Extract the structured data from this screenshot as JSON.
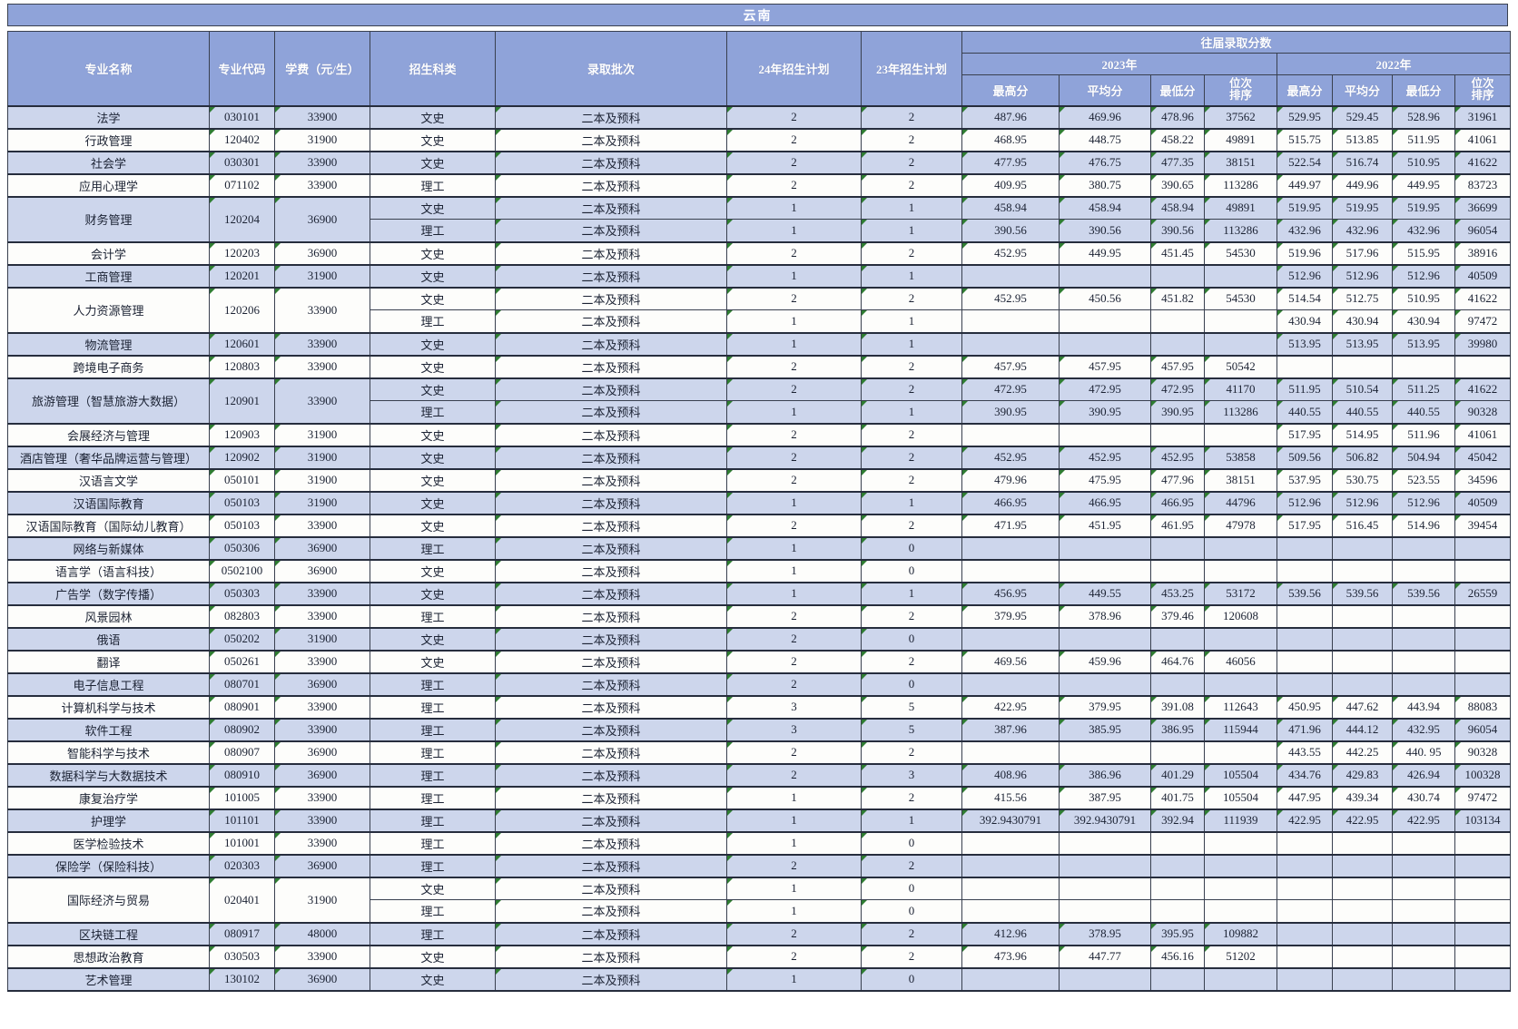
{
  "region_banner": "云南",
  "columns": {
    "major": "专业名称",
    "code": "专业代码",
    "tuition": "学费（元/生）",
    "category": "招生科类",
    "batch": "录取批次",
    "plan24": "24年招生计划",
    "plan23": "23年招生计划",
    "past_scores": "往届录取分数",
    "year2023": "2023年",
    "year2022": "2022年",
    "max": "最高分",
    "avg": "平均分",
    "min": "最低分",
    "rank": "位次\n排序"
  },
  "colors": {
    "header_bg": "#8fa3d9",
    "row_alt_bg": "#cdd6ec",
    "row_white_bg": "#fdfdfb",
    "border": "#39404f",
    "header_text": "#ffffff",
    "body_text": "#1b2233",
    "error_triangle": "#2f7d32"
  },
  "majors": [
    {
      "name": "法学",
      "code": "030101",
      "tuition": "33900",
      "rows": [
        {
          "category": "文史",
          "batch": "二本及预科",
          "plan24": "2",
          "plan23": "2",
          "y2023": [
            "487.96",
            "469.96",
            "478.96",
            "37562"
          ],
          "y2022": [
            "529.95",
            "529.45",
            "528.96",
            "31961"
          ]
        }
      ]
    },
    {
      "name": "行政管理",
      "code": "120402",
      "tuition": "31900",
      "rows": [
        {
          "category": "文史",
          "batch": "二本及预科",
          "plan24": "2",
          "plan23": "2",
          "y2023": [
            "468.95",
            "448.75",
            "458.22",
            "49891"
          ],
          "y2022": [
            "515.75",
            "513.85",
            "511.95",
            "41061"
          ]
        }
      ]
    },
    {
      "name": "社会学",
      "code": "030301",
      "tuition": "33900",
      "rows": [
        {
          "category": "文史",
          "batch": "二本及预科",
          "plan24": "2",
          "plan23": "2",
          "y2023": [
            "477.95",
            "476.75",
            "477.35",
            "38151"
          ],
          "y2022": [
            "522.54",
            "516.74",
            "510.95",
            "41622"
          ]
        }
      ]
    },
    {
      "name": "应用心理学",
      "code": "071102",
      "tuition": "33900",
      "rows": [
        {
          "category": "理工",
          "batch": "二本及预科",
          "plan24": "2",
          "plan23": "2",
          "y2023": [
            "409.95",
            "380.75",
            "390.65",
            "113286"
          ],
          "y2022": [
            "449.97",
            "449.96",
            "449.95",
            "83723"
          ]
        }
      ]
    },
    {
      "name": "财务管理",
      "code": "120204",
      "tuition": "36900",
      "rows": [
        {
          "category": "文史",
          "batch": "二本及预科",
          "plan24": "1",
          "plan23": "1",
          "y2023": [
            "458.94",
            "458.94",
            "458.94",
            "49891"
          ],
          "y2022": [
            "519.95",
            "519.95",
            "519.95",
            "36699"
          ]
        },
        {
          "category": "理工",
          "batch": "二本及预科",
          "plan24": "1",
          "plan23": "1",
          "y2023": [
            "390.56",
            "390.56",
            "390.56",
            "113286"
          ],
          "y2022": [
            "432.96",
            "432.96",
            "432.96",
            "96054"
          ]
        }
      ]
    },
    {
      "name": "会计学",
      "code": "120203",
      "tuition": "36900",
      "rows": [
        {
          "category": "文史",
          "batch": "二本及预科",
          "plan24": "2",
          "plan23": "2",
          "y2023": [
            "452.95",
            "449.95",
            "451.45",
            "54530"
          ],
          "y2022": [
            "519.96",
            "517.96",
            "515.95",
            "38916"
          ]
        }
      ]
    },
    {
      "name": "工商管理",
      "code": "120201",
      "tuition": "31900",
      "rows": [
        {
          "category": "文史",
          "batch": "二本及预科",
          "plan24": "1",
          "plan23": "1",
          "y2023": [
            "",
            "",
            "",
            ""
          ],
          "y2022": [
            "512.96",
            "512.96",
            "512.96",
            "40509"
          ]
        }
      ]
    },
    {
      "name": "人力资源管理",
      "code": "120206",
      "tuition": "33900",
      "rows": [
        {
          "category": "文史",
          "batch": "二本及预科",
          "plan24": "2",
          "plan23": "2",
          "y2023": [
            "452.95",
            "450.56",
            "451.82",
            "54530"
          ],
          "y2022": [
            "514.54",
            "512.75",
            "510.95",
            "41622"
          ]
        },
        {
          "category": "理工",
          "batch": "二本及预科",
          "plan24": "1",
          "plan23": "1",
          "y2023": [
            "",
            "",
            "",
            ""
          ],
          "y2022": [
            "430.94",
            "430.94",
            "430.94",
            "97472"
          ]
        }
      ]
    },
    {
      "name": "物流管理",
      "code": "120601",
      "tuition": "33900",
      "rows": [
        {
          "category": "文史",
          "batch": "二本及预科",
          "plan24": "1",
          "plan23": "1",
          "y2023": [
            "",
            "",
            "",
            ""
          ],
          "y2022": [
            "513.95",
            "513.95",
            "513.95",
            "39980"
          ]
        }
      ]
    },
    {
      "name": "跨境电子商务",
      "code": "120803",
      "tuition": "33900",
      "rows": [
        {
          "category": "文史",
          "batch": "二本及预科",
          "plan24": "2",
          "plan23": "2",
          "y2023": [
            "457.95",
            "457.95",
            "457.95",
            "50542"
          ],
          "y2022": [
            "",
            "",
            "",
            ""
          ]
        }
      ]
    },
    {
      "name": "旅游管理（智慧旅游大数据）",
      "code": "120901",
      "tuition": "33900",
      "rows": [
        {
          "category": "文史",
          "batch": "二本及预科",
          "plan24": "2",
          "plan23": "2",
          "y2023": [
            "472.95",
            "472.95",
            "472.95",
            "41170"
          ],
          "y2022": [
            "511.95",
            "510.54",
            "511.25",
            "41622"
          ]
        },
        {
          "category": "理工",
          "batch": "二本及预科",
          "plan24": "1",
          "plan23": "1",
          "y2023": [
            "390.95",
            "390.95",
            "390.95",
            "113286"
          ],
          "y2022": [
            "440.55",
            "440.55",
            "440.55",
            "90328"
          ]
        }
      ]
    },
    {
      "name": "会展经济与管理",
      "code": "120903",
      "tuition": "31900",
      "rows": [
        {
          "category": "文史",
          "batch": "二本及预科",
          "plan24": "2",
          "plan23": "2",
          "y2023": [
            "",
            "",
            "",
            ""
          ],
          "y2022": [
            "517.95",
            "514.95",
            "511.96",
            "41061"
          ]
        }
      ]
    },
    {
      "name": "酒店管理（奢华品牌运营与管理）",
      "code": "120902",
      "tuition": "31900",
      "rows": [
        {
          "category": "文史",
          "batch": "二本及预科",
          "plan24": "2",
          "plan23": "2",
          "y2023": [
            "452.95",
            "452.95",
            "452.95",
            "53858"
          ],
          "y2022": [
            "509.56",
            "506.82",
            "504.94",
            "45042"
          ]
        }
      ]
    },
    {
      "name": "汉语言文学",
      "code": "050101",
      "tuition": "31900",
      "rows": [
        {
          "category": "文史",
          "batch": "二本及预科",
          "plan24": "2",
          "plan23": "2",
          "y2023": [
            "479.96",
            "475.95",
            "477.96",
            "38151"
          ],
          "y2022": [
            "537.95",
            "530.75",
            "523.55",
            "34596"
          ]
        }
      ]
    },
    {
      "name": "汉语国际教育",
      "code": "050103",
      "tuition": "31900",
      "rows": [
        {
          "category": "文史",
          "batch": "二本及预科",
          "plan24": "1",
          "plan23": "1",
          "y2023": [
            "466.95",
            "466.95",
            "466.95",
            "44796"
          ],
          "y2022": [
            "512.96",
            "512.96",
            "512.96",
            "40509"
          ]
        }
      ]
    },
    {
      "name": "汉语国际教育（国际幼儿教育）",
      "code": "050103",
      "tuition": "33900",
      "rows": [
        {
          "category": "文史",
          "batch": "二本及预科",
          "plan24": "2",
          "plan23": "2",
          "y2023": [
            "471.95",
            "451.95",
            "461.95",
            "47978"
          ],
          "y2022": [
            "517.95",
            "516.45",
            "514.96",
            "39454"
          ]
        }
      ]
    },
    {
      "name": "网络与新媒体",
      "code": "050306",
      "tuition": "36900",
      "rows": [
        {
          "category": "理工",
          "batch": "二本及预科",
          "plan24": "1",
          "plan23": "0",
          "y2023": [
            "",
            "",
            "",
            ""
          ],
          "y2022": [
            "",
            "",
            "",
            ""
          ]
        }
      ]
    },
    {
      "name": "语言学（语言科技）",
      "code": "0502100",
      "tuition": "36900",
      "rows": [
        {
          "category": "文史",
          "batch": "二本及预科",
          "plan24": "1",
          "plan23": "0",
          "y2023": [
            "",
            "",
            "",
            ""
          ],
          "y2022": [
            "",
            "",
            "",
            ""
          ]
        }
      ]
    },
    {
      "name": "广告学（数字传播）",
      "code": "050303",
      "tuition": "33900",
      "rows": [
        {
          "category": "文史",
          "batch": "二本及预科",
          "plan24": "1",
          "plan23": "1",
          "y2023": [
            "456.95",
            "449.55",
            "453.25",
            "53172"
          ],
          "y2022": [
            "539.56",
            "539.56",
            "539.56",
            "26559"
          ]
        }
      ]
    },
    {
      "name": "风景园林",
      "code": "082803",
      "tuition": "33900",
      "rows": [
        {
          "category": "理工",
          "batch": "二本及预科",
          "plan24": "2",
          "plan23": "2",
          "y2023": [
            "379.95",
            "378.96",
            "379.46",
            "120608"
          ],
          "y2022": [
            "",
            "",
            "",
            ""
          ]
        }
      ]
    },
    {
      "name": "俄语",
      "code": "050202",
      "tuition": "31900",
      "rows": [
        {
          "category": "文史",
          "batch": "二本及预科",
          "plan24": "2",
          "plan23": "0",
          "y2023": [
            "",
            "",
            "",
            ""
          ],
          "y2022": [
            "",
            "",
            "",
            ""
          ]
        }
      ]
    },
    {
      "name": "翻译",
      "code": "050261",
      "tuition": "33900",
      "rows": [
        {
          "category": "文史",
          "batch": "二本及预科",
          "plan24": "2",
          "plan23": "2",
          "y2023": [
            "469.56",
            "459.96",
            "464.76",
            "46056"
          ],
          "y2022": [
            "",
            "",
            "",
            ""
          ]
        }
      ]
    },
    {
      "name": "电子信息工程",
      "code": "080701",
      "tuition": "36900",
      "rows": [
        {
          "category": "理工",
          "batch": "二本及预科",
          "plan24": "2",
          "plan23": "0",
          "y2023": [
            "",
            "",
            "",
            ""
          ],
          "y2022": [
            "",
            "",
            "",
            ""
          ]
        }
      ]
    },
    {
      "name": "计算机科学与技术",
      "code": "080901",
      "tuition": "33900",
      "rows": [
        {
          "category": "理工",
          "batch": "二本及预科",
          "plan24": "3",
          "plan23": "5",
          "y2023": [
            "422.95",
            "379.95",
            "391.08",
            "112643"
          ],
          "y2022": [
            "450.95",
            "447.62",
            "443.94",
            "88083"
          ]
        }
      ]
    },
    {
      "name": "软件工程",
      "code": "080902",
      "tuition": "33900",
      "rows": [
        {
          "category": "理工",
          "batch": "二本及预科",
          "plan24": "3",
          "plan23": "5",
          "y2023": [
            "387.96",
            "385.95",
            "386.95",
            "115944"
          ],
          "y2022": [
            "471.96",
            "444.12",
            "432.95",
            "96054"
          ]
        }
      ]
    },
    {
      "name": "智能科学与技术",
      "code": "080907",
      "tuition": "36900",
      "rows": [
        {
          "category": "理工",
          "batch": "二本及预科",
          "plan24": "2",
          "plan23": "2",
          "y2023": [
            "",
            "",
            "",
            ""
          ],
          "y2022": [
            "443.55",
            "442.25",
            "440. 95",
            "90328"
          ]
        }
      ]
    },
    {
      "name": "数据科学与大数据技术",
      "code": "080910",
      "tuition": "36900",
      "rows": [
        {
          "category": "理工",
          "batch": "二本及预科",
          "plan24": "2",
          "plan23": "3",
          "y2023": [
            "408.96",
            "386.96",
            "401.29",
            "105504"
          ],
          "y2022": [
            "434.76",
            "429.83",
            "426.94",
            "100328"
          ]
        }
      ]
    },
    {
      "name": "康复治疗学",
      "code": "101005",
      "tuition": "33900",
      "rows": [
        {
          "category": "理工",
          "batch": "二本及预科",
          "plan24": "1",
          "plan23": "2",
          "y2023": [
            "415.56",
            "387.95",
            "401.75",
            "105504"
          ],
          "y2022": [
            "447.95",
            "439.34",
            "430.74",
            "97472"
          ]
        }
      ]
    },
    {
      "name": "护理学",
      "code": "101101",
      "tuition": "33900",
      "rows": [
        {
          "category": "理工",
          "batch": "二本及预科",
          "plan24": "1",
          "plan23": "1",
          "y2023": [
            "392.9430791",
            "392.9430791",
            "392.94",
            "111939"
          ],
          "y2022": [
            "422.95",
            "422.95",
            "422.95",
            "103134"
          ]
        }
      ]
    },
    {
      "name": "医学检验技术",
      "code": "101001",
      "tuition": "33900",
      "rows": [
        {
          "category": "理工",
          "batch": "二本及预科",
          "plan24": "1",
          "plan23": "0",
          "y2023": [
            "",
            "",
            "",
            ""
          ],
          "y2022": [
            "",
            "",
            "",
            ""
          ]
        }
      ]
    },
    {
      "name": "保险学（保险科技）",
      "code": "020303",
      "tuition": "36900",
      "rows": [
        {
          "category": "理工",
          "batch": "二本及预科",
          "plan24": "2",
          "plan23": "2",
          "y2023": [
            "",
            "",
            "",
            ""
          ],
          "y2022": [
            "",
            "",
            "",
            ""
          ]
        }
      ]
    },
    {
      "name": "国际经济与贸易",
      "code": "020401",
      "tuition": "31900",
      "rows": [
        {
          "category": "文史",
          "batch": "二本及预科",
          "plan24": "1",
          "plan23": "0",
          "y2023": [
            "",
            "",
            "",
            ""
          ],
          "y2022": [
            "",
            "",
            "",
            ""
          ]
        },
        {
          "category": "理工",
          "batch": "二本及预科",
          "plan24": "1",
          "plan23": "0",
          "y2023": [
            "",
            "",
            "",
            ""
          ],
          "y2022": [
            "",
            "",
            "",
            ""
          ]
        }
      ]
    },
    {
      "name": "区块链工程",
      "code": "080917",
      "tuition": "48000",
      "rows": [
        {
          "category": "理工",
          "batch": "二本及预科",
          "plan24": "2",
          "plan23": "2",
          "y2023": [
            "412.96",
            "378.95",
            "395.95",
            "109882"
          ],
          "y2022": [
            "",
            "",
            "",
            ""
          ]
        }
      ]
    },
    {
      "name": "思想政治教育",
      "code": "030503",
      "tuition": "33900",
      "rows": [
        {
          "category": "文史",
          "batch": "二本及预科",
          "plan24": "2",
          "plan23": "2",
          "y2023": [
            "473.96",
            "447.77",
            "456.16",
            "51202"
          ],
          "y2022": [
            "",
            "",
            "",
            ""
          ]
        }
      ]
    },
    {
      "name": "艺术管理",
      "code": "130102",
      "tuition": "36900",
      "rows": [
        {
          "category": "文史",
          "batch": "二本及预科",
          "plan24": "1",
          "plan23": "0",
          "y2023": [
            "",
            "",
            "",
            ""
          ],
          "y2022": [
            "",
            "",
            "",
            ""
          ]
        }
      ]
    }
  ]
}
